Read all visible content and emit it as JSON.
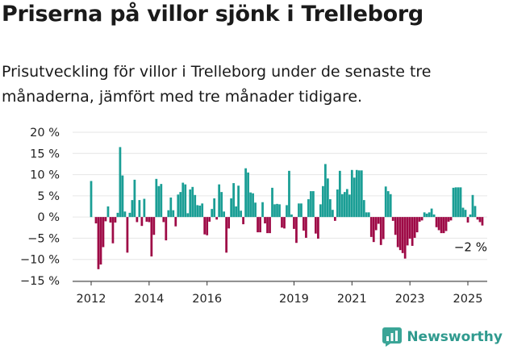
{
  "header": {
    "title": "Priserna på villor sjönk i Trelleborg",
    "subtitle": "Prisutveckling för villor i Trelleborg under de senaste tre månaderna, jämfört med tre månader tidigare."
  },
  "brand": {
    "name": "Newsworthy",
    "icon": "newsworthy-logo-icon",
    "color": "#2f9a8e"
  },
  "chart_data": {
    "type": "bar",
    "x_start": "2012-01",
    "x_end": "2025-03",
    "values": [
      8.5,
      0,
      -1.5,
      -12.3,
      -11.2,
      -7.1,
      -1.0,
      2.5,
      -1.3,
      -6.2,
      -1.3,
      1.0,
      16.5,
      9.8,
      1.3,
      -8.4,
      1.0,
      4.0,
      8.8,
      -1.2,
      4.0,
      -2.1,
      4.3,
      -1.1,
      -1.2,
      -9.3,
      -4.2,
      9.0,
      7.3,
      7.8,
      -1.2,
      -5.5,
      1.6,
      4.6,
      1.6,
      -2.2,
      5.3,
      5.9,
      8.1,
      7.7,
      0.9,
      6.5,
      7.1,
      5.2,
      2.8,
      2.7,
      3.2,
      -4.1,
      -4.3,
      -1.1,
      1.9,
      4.4,
      -0.6,
      7.7,
      5.9,
      1.3,
      -8.4,
      -2.7,
      4.4,
      8.0,
      2.5,
      7.4,
      1.5,
      -1.7,
      11.5,
      10.5,
      5.8,
      5.6,
      3.4,
      -3.6,
      -3.6,
      3.5,
      -1.5,
      -3.8,
      -3.8,
      6.9,
      3.0,
      3.1,
      3.0,
      -2.5,
      -2.7,
      2.8,
      10.9,
      0.6,
      -2.8,
      -6.1,
      3.2,
      3.2,
      -3.2,
      -4.9,
      4.2,
      6.1,
      6.1,
      -3.9,
      -5.1,
      3.0,
      7.3,
      12.5,
      9.1,
      4.2,
      1.7,
      -0.9,
      6.5,
      10.9,
      5.4,
      5.9,
      6.6,
      5.3,
      11.1,
      9.3,
      11.1,
      11.0,
      11.0,
      4.0,
      1.1,
      1.1,
      -4.7,
      -5.9,
      -3.1,
      -1.6,
      -6.6,
      -5.2,
      7.2,
      6.1,
      5.4,
      -0.9,
      -4.2,
      -7.1,
      -7.8,
      -8.5,
      -9.8,
      -6.7,
      -5.1,
      -6.8,
      -4.9,
      -3.6,
      -1.1,
      -0.8,
      1.1,
      0.8,
      1.1,
      2.0,
      0.6,
      -2.4,
      -3.1,
      -3.8,
      -3.8,
      -3.3,
      -1.1,
      -0.8,
      6.9,
      7.0,
      7.0,
      7.0,
      2.2,
      1.7,
      -1.3,
      0.6,
      5.2,
      2.6,
      -0.6,
      -1.2,
      -2.0
    ],
    "positive_color": "#1a9e95",
    "negative_color": "#9e0a46",
    "ylim": [
      -15,
      20
    ],
    "yticks": [
      20,
      15,
      10,
      5,
      0,
      -5,
      -10,
      -15
    ],
    "ytick_labels": [
      "20 %",
      "15 %",
      "10 %",
      "5 %",
      "0 %",
      "−5 %",
      "−10 %",
      "−15 %"
    ],
    "xticks": [
      "2012",
      "2014",
      "2016",
      "2019",
      "2021",
      "2023",
      "2025"
    ],
    "xtick_values": [
      "2012-01",
      "2014-01",
      "2016-01",
      "2019-01",
      "2021-01",
      "2023-01",
      "2025-01"
    ],
    "grid": true,
    "legend": "none",
    "annotation": {
      "text": "−2 %",
      "x": "2025-03",
      "y": -2
    }
  }
}
